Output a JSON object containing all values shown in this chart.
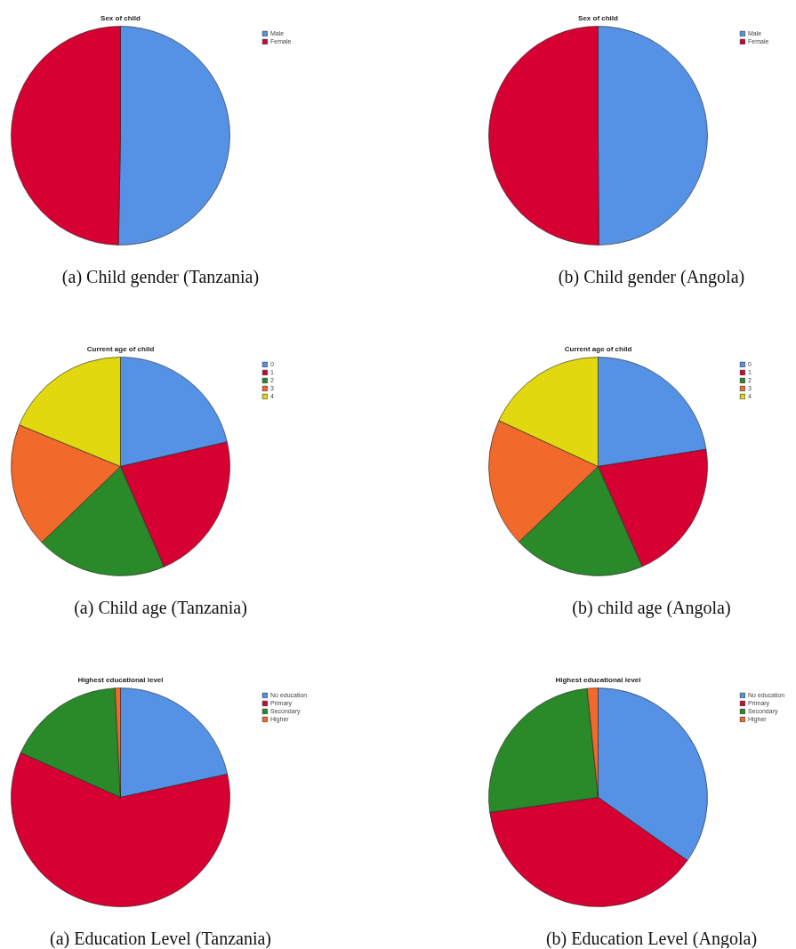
{
  "chart_data": [
    {
      "type": "pie",
      "title": "Sex of child",
      "categories": [
        "Male",
        "Female"
      ],
      "values": [
        50.3,
        49.7
      ],
      "colors": [
        "#5591e4",
        "#d60032"
      ],
      "legend": "top right",
      "annotations": [
        "(a) Child gender (Tanzania)"
      ]
    },
    {
      "type": "pie",
      "title": "Sex of child",
      "categories": [
        "Male",
        "Female"
      ],
      "values": [
        49.9,
        50.1
      ],
      "colors": [
        "#5591e4",
        "#d60032"
      ],
      "legend": "top right",
      "annotations": [
        "(b) Child gender (Angola)"
      ]
    },
    {
      "type": "pie",
      "title": "Current age of child",
      "categories": [
        "0",
        "1",
        "2",
        "3",
        "4"
      ],
      "values": [
        21.4,
        22.1,
        19.3,
        18.4,
        18.8
      ],
      "colors": [
        "#5591e4",
        "#d60032",
        "#2a8a2a",
        "#f1692b",
        "#e1d80f"
      ],
      "legend": "top right",
      "annotations": [
        "(a) Child age (Tanzania)"
      ]
    },
    {
      "type": "pie",
      "title": "Current age of child",
      "categories": [
        "0",
        "1",
        "2",
        "3",
        "4"
      ],
      "values": [
        22.5,
        20.9,
        19.5,
        19.0,
        18.1
      ],
      "colors": [
        "#5591e4",
        "#d60032",
        "#2a8a2a",
        "#f1692b",
        "#e1d80f"
      ],
      "legend": "top right",
      "annotations": [
        "(b) child age (Angola)"
      ]
    },
    {
      "type": "pie",
      "title": "Highest educational level",
      "categories": [
        "No education",
        "Primary",
        "Secondary",
        "Higher"
      ],
      "values": [
        21.6,
        60.1,
        17.5,
        0.8
      ],
      "colors": [
        "#5591e4",
        "#d60032",
        "#2a8a2a",
        "#f1692b"
      ],
      "legend": "top right",
      "annotations": [
        "(a) Education Level (Tanzania)"
      ]
    },
    {
      "type": "pie",
      "title": "Highest educational level",
      "categories": [
        "No education",
        "Primary",
        "Secondary",
        "Higher"
      ],
      "values": [
        34.8,
        38.0,
        25.6,
        1.6
      ],
      "colors": [
        "#5591e4",
        "#d60032",
        "#2a8a2a",
        "#f1692b"
      ],
      "legend": "top right",
      "annotations": [
        "(b) Education Level (Angola)"
      ]
    }
  ]
}
